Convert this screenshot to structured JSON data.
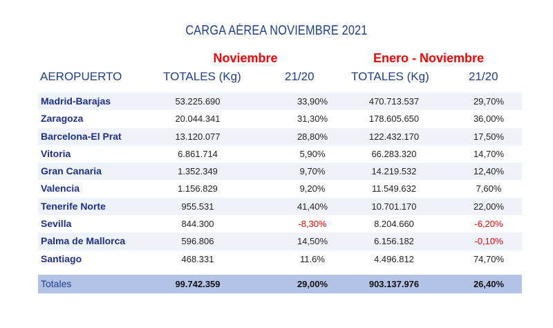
{
  "title": "CARGA AÉREA NOVIEMBRE 2021",
  "groups": {
    "nov": "Noviembre",
    "ytd": "Enero - Noviembre"
  },
  "headers": {
    "airport": "AEROPUERTO",
    "nov_total": "TOTALES (Kg)",
    "nov_var": "21/20",
    "ytd_total": "TOTALES (Kg)",
    "ytd_var": "21/20"
  },
  "rows": [
    {
      "airport": "Madrid-Barajas",
      "nov_total": "53.225.690",
      "nov_var": "33,90%",
      "ytd_total": "470.713.537",
      "ytd_var": "29,70%"
    },
    {
      "airport": "Zaragoza",
      "nov_total": "20.044.341",
      "nov_var": "31,30%",
      "ytd_total": "178.605.650",
      "ytd_var": "36,00%"
    },
    {
      "airport": "Barcelona-El Prat",
      "nov_total": "13.120.077",
      "nov_var": "28,80%",
      "ytd_total": "122.432.170",
      "ytd_var": "17,50%"
    },
    {
      "airport": "Vitoria",
      "nov_total": "6.861.714",
      "nov_var": "5,90%",
      "ytd_total": "66.283.320",
      "ytd_var": "14,70%"
    },
    {
      "airport": "Gran Canaria",
      "nov_total": "1.352.349",
      "nov_var": "9,70%",
      "ytd_total": "14.219.532",
      "ytd_var": "12,40%"
    },
    {
      "airport": "Valencia",
      "nov_total": "1.156.829",
      "nov_var": "9,20%",
      "ytd_total": "11.549.632",
      "ytd_var": "7,60%"
    },
    {
      "airport": "Tenerife Norte",
      "nov_total": "955.531",
      "nov_var": "41,40%",
      "ytd_total": "10.701.170",
      "ytd_var": "22,00%"
    },
    {
      "airport": "Sevilla",
      "nov_total": "844.300",
      "nov_var": "-8,30%",
      "ytd_total": "8.204.660",
      "ytd_var": "-6,20%"
    },
    {
      "airport": "Palma de Mallorca",
      "nov_total": "596.806",
      "nov_var": "14,50%",
      "ytd_total": "6.156.182",
      "ytd_var": "-0,10%"
    },
    {
      "airport": "Santiago",
      "nov_total": "468.331",
      "nov_var": "11.6%",
      "ytd_total": "4.496.812",
      "ytd_var": "74,70%"
    }
  ],
  "totals": {
    "label": "Totales",
    "nov_total": "99.742.359",
    "nov_var": "29,00%",
    "ytd_total": "903.137.976",
    "ytd_var": "26,40%"
  },
  "colors": {
    "title": "#1d3f8e",
    "group_header": "#ff0000",
    "airport_name": "#1d2f8a",
    "row_shade": "#eef2f9",
    "totals_bg": "#b2c3e6",
    "negative": "#ff0000"
  }
}
